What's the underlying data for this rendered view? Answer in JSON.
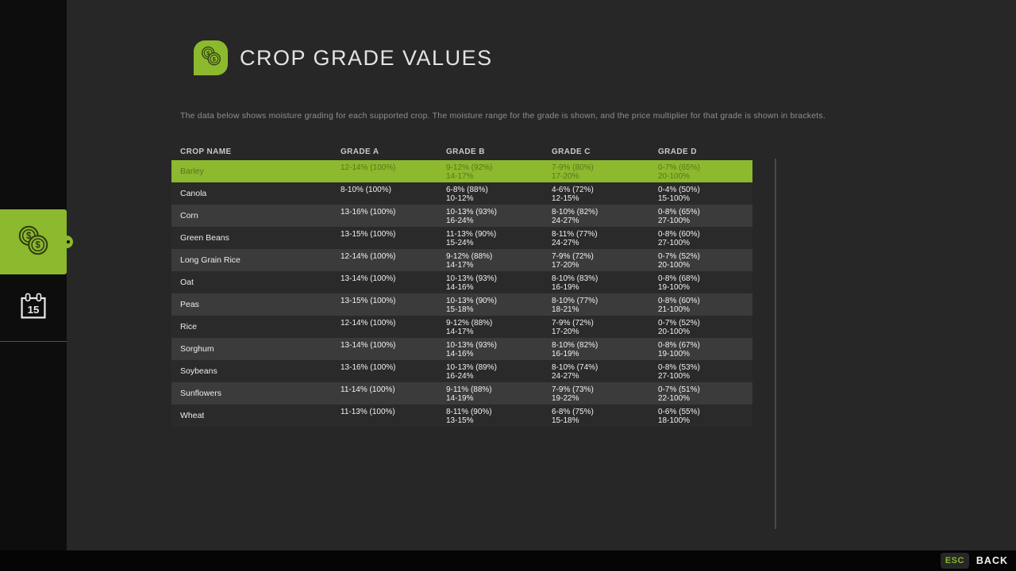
{
  "header": {
    "title": "CROP GRADE VALUES"
  },
  "description": "The data below shows moisture grading for each supported crop. The moisture range for the grade is shown, and the price multiplier for that grade is shown in brackets.",
  "icons": {
    "currency": "$"
  },
  "sidebar": {
    "tabs": [
      {
        "name": "crop-prices",
        "icon": "coins-icon",
        "active": true
      },
      {
        "name": "calendar",
        "icon": "calendar-icon",
        "active": false
      }
    ],
    "calendar_label": "15"
  },
  "table": {
    "columns": [
      "CROP NAME",
      "GRADE A",
      "GRADE B",
      "GRADE C",
      "GRADE D"
    ],
    "rows": [
      {
        "crop": "Barley",
        "selected": true,
        "a": [
          "12-14% (100%)"
        ],
        "b": [
          "9-12% (92%)",
          "14-17%"
        ],
        "c": [
          "7-9% (80%)",
          "17-20%"
        ],
        "d": [
          "0-7% (65%)",
          "20-100%"
        ]
      },
      {
        "crop": "Canola",
        "selected": false,
        "a": [
          "8-10% (100%)"
        ],
        "b": [
          "6-8% (88%)",
          "10-12%"
        ],
        "c": [
          "4-6% (72%)",
          "12-15%"
        ],
        "d": [
          "0-4% (50%)",
          "15-100%"
        ]
      },
      {
        "crop": "Corn",
        "selected": false,
        "a": [
          "13-16% (100%)"
        ],
        "b": [
          "10-13% (93%)",
          "16-24%"
        ],
        "c": [
          "8-10% (82%)",
          "24-27%"
        ],
        "d": [
          "0-8% (65%)",
          "27-100%"
        ]
      },
      {
        "crop": "Green Beans",
        "selected": false,
        "a": [
          "13-15% (100%)"
        ],
        "b": [
          "11-13% (90%)",
          "15-24%"
        ],
        "c": [
          "8-11% (77%)",
          "24-27%"
        ],
        "d": [
          "0-8% (60%)",
          "27-100%"
        ]
      },
      {
        "crop": "Long Grain Rice",
        "selected": false,
        "a": [
          "12-14% (100%)"
        ],
        "b": [
          "9-12% (88%)",
          "14-17%"
        ],
        "c": [
          "7-9% (72%)",
          "17-20%"
        ],
        "d": [
          "0-7% (52%)",
          "20-100%"
        ]
      },
      {
        "crop": "Oat",
        "selected": false,
        "a": [
          "13-14% (100%)"
        ],
        "b": [
          "10-13% (93%)",
          "14-16%"
        ],
        "c": [
          "8-10% (83%)",
          "16-19%"
        ],
        "d": [
          "0-8% (68%)",
          "19-100%"
        ]
      },
      {
        "crop": "Peas",
        "selected": false,
        "a": [
          "13-15% (100%)"
        ],
        "b": [
          "10-13% (90%)",
          "15-18%"
        ],
        "c": [
          "8-10% (77%)",
          "18-21%"
        ],
        "d": [
          "0-8% (60%)",
          "21-100%"
        ]
      },
      {
        "crop": "Rice",
        "selected": false,
        "a": [
          "12-14% (100%)"
        ],
        "b": [
          "9-12% (88%)",
          "14-17%"
        ],
        "c": [
          "7-9% (72%)",
          "17-20%"
        ],
        "d": [
          "0-7% (52%)",
          "20-100%"
        ]
      },
      {
        "crop": "Sorghum",
        "selected": false,
        "a": [
          "13-14% (100%)"
        ],
        "b": [
          "10-13% (93%)",
          "14-16%"
        ],
        "c": [
          "8-10% (82%)",
          "16-19%"
        ],
        "d": [
          "0-8% (67%)",
          "19-100%"
        ]
      },
      {
        "crop": "Soybeans",
        "selected": false,
        "a": [
          "13-16% (100%)"
        ],
        "b": [
          "10-13% (89%)",
          "16-24%"
        ],
        "c": [
          "8-10% (74%)",
          "24-27%"
        ],
        "d": [
          "0-8% (53%)",
          "27-100%"
        ]
      },
      {
        "crop": "Sunflowers",
        "selected": false,
        "a": [
          "11-14% (100%)"
        ],
        "b": [
          "9-11% (88%)",
          "14-19%"
        ],
        "c": [
          "7-9% (73%)",
          "19-22%"
        ],
        "d": [
          "0-7% (51%)",
          "22-100%"
        ]
      },
      {
        "crop": "Wheat",
        "selected": false,
        "a": [
          "11-13% (100%)"
        ],
        "b": [
          "8-11% (90%)",
          "13-15%"
        ],
        "c": [
          "6-8% (75%)",
          "15-18%"
        ],
        "d": [
          "0-6% (55%)",
          "18-100%"
        ]
      }
    ]
  },
  "footer": {
    "esc_label": "ESC",
    "back_label": "BACK"
  },
  "colors": {
    "accent_green": "#8cb92d",
    "selected_row_text": "#5b7520",
    "row_light": "#3b3b3b",
    "row_dark": "#2a2a2a",
    "background": "#272727",
    "rail_black": "#0d0d0d"
  }
}
